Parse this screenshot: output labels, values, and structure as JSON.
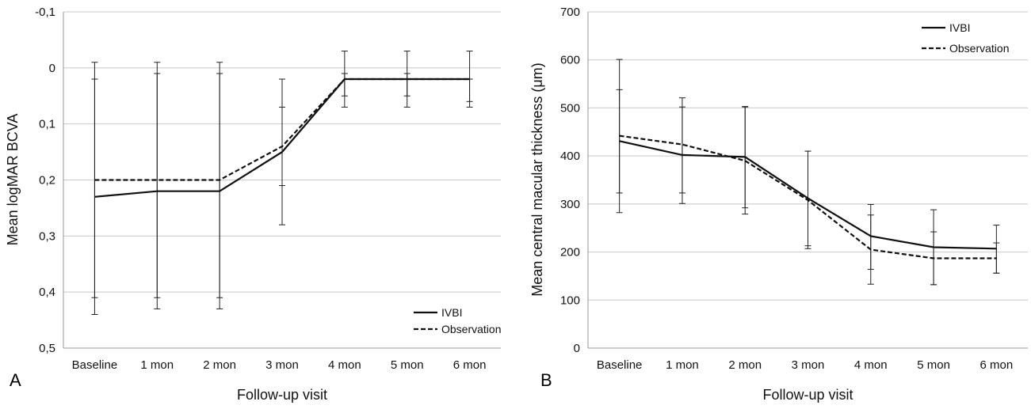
{
  "chart_data": [
    {
      "panel": "A",
      "type": "line",
      "xlabel": "Follow-up visit",
      "ylabel": "Mean logMAR BCVA",
      "ylim": [
        -0.1,
        0.5
      ],
      "y_inverted": true,
      "yticks": [
        "-0,1",
        "0",
        "0,1",
        "0,2",
        "0,3",
        "0,4",
        "0,5"
      ],
      "ytick_values": [
        -0.1,
        0,
        0.1,
        0.2,
        0.3,
        0.4,
        0.5
      ],
      "grid": "horizontal",
      "legend": "bottom-right",
      "categories": [
        "Baseline",
        "1 mon",
        "2 mon",
        "3 mon",
        "4 mon",
        "5 mon",
        "6 mon"
      ],
      "series": [
        {
          "name": "IVBI",
          "style": "solid",
          "values": [
            0.23,
            0.22,
            0.22,
            0.15,
            0.02,
            0.02,
            0.02
          ],
          "error_low": [
            -0.01,
            -0.01,
            -0.01,
            0.02,
            -0.03,
            -0.03,
            -0.03
          ],
          "error_high": [
            0.44,
            0.43,
            0.43,
            0.28,
            0.07,
            0.07,
            0.07
          ]
        },
        {
          "name": "Observation",
          "style": "dashed",
          "values": [
            0.2,
            0.2,
            0.2,
            0.14,
            0.02,
            0.02,
            0.02
          ],
          "error_low": [
            0.02,
            0.01,
            0.01,
            0.07,
            0.01,
            0.01,
            0.02
          ],
          "error_high": [
            0.41,
            0.41,
            0.41,
            0.21,
            0.05,
            0.05,
            0.06
          ]
        }
      ]
    },
    {
      "panel": "B",
      "type": "line",
      "xlabel": "Follow-up visit",
      "ylabel": "Mean central macular thickness (μm)",
      "ylim": [
        0,
        700
      ],
      "yticks": [
        "0",
        "100",
        "200",
        "300",
        "400",
        "500",
        "600",
        "700"
      ],
      "ytick_values": [
        0,
        100,
        200,
        300,
        400,
        500,
        600,
        700
      ],
      "grid": "horizontal",
      "legend": "top-right",
      "categories": [
        "Baseline",
        "1 mon",
        "2 mon",
        "3 mon",
        "4 mon",
        "5 mon",
        "6 mon"
      ],
      "series": [
        {
          "name": "IVBI",
          "style": "solid",
          "values": [
            431,
            402,
            398,
            312,
            233,
            210,
            207
          ],
          "error_low": [
            282,
            301,
            292,
            213,
            164,
            132,
            156
          ],
          "error_high": [
            601,
            521,
            503,
            410,
            299,
            288,
            256
          ]
        },
        {
          "name": "Observation",
          "style": "dashed",
          "values": [
            442,
            424,
            390,
            308,
            205,
            187,
            187
          ],
          "error_low": [
            323,
            323,
            279,
            207,
            133,
            132,
            156
          ],
          "error_high": [
            538,
            502,
            502,
            410,
            277,
            242,
            219
          ]
        }
      ]
    }
  ]
}
